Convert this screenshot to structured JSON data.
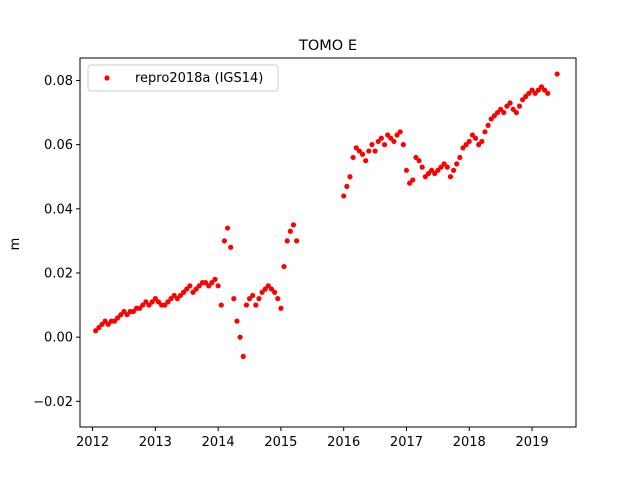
{
  "chart_data": {
    "type": "scatter",
    "title": "TOMO E",
    "xlabel": "",
    "ylabel": "m",
    "xlim": [
      2011.8,
      2019.7
    ],
    "ylim": [
      -0.028,
      0.087
    ],
    "x_ticks": [
      2012,
      2013,
      2014,
      2015,
      2016,
      2017,
      2018,
      2019
    ],
    "x_tick_labels": [
      "2012",
      "2013",
      "2014",
      "2015",
      "2016",
      "2017",
      "2018",
      "2019"
    ],
    "y_ticks": [
      -0.02,
      0.0,
      0.02,
      0.04,
      0.06,
      0.08
    ],
    "y_tick_labels": [
      "−0.02",
      "0.00",
      "0.02",
      "0.04",
      "0.06",
      "0.08"
    ],
    "grid": false,
    "legend_position": "top-left",
    "series": [
      {
        "name": "repro2018a (IGS14)",
        "color": "#ff0000",
        "marker": "circle",
        "x": [
          2012.05,
          2012.1,
          2012.15,
          2012.2,
          2012.25,
          2012.3,
          2012.35,
          2012.4,
          2012.45,
          2012.5,
          2012.55,
          2012.6,
          2012.65,
          2012.7,
          2012.75,
          2012.8,
          2012.85,
          2012.9,
          2012.95,
          2013.0,
          2013.05,
          2013.1,
          2013.15,
          2013.2,
          2013.25,
          2013.3,
          2013.35,
          2013.4,
          2013.45,
          2013.5,
          2013.55,
          2013.6,
          2013.65,
          2013.7,
          2013.75,
          2013.8,
          2013.85,
          2013.9,
          2013.95,
          2014.0,
          2014.05,
          2014.1,
          2014.15,
          2014.2,
          2014.25,
          2014.3,
          2014.35,
          2014.4,
          2014.45,
          2014.5,
          2014.55,
          2014.6,
          2014.65,
          2014.7,
          2014.75,
          2014.8,
          2014.85,
          2014.9,
          2014.95,
          2015.0,
          2015.05,
          2015.1,
          2015.15,
          2015.2,
          2015.25,
          2016.0,
          2016.05,
          2016.1,
          2016.15,
          2016.2,
          2016.25,
          2016.3,
          2016.35,
          2016.4,
          2016.45,
          2016.5,
          2016.55,
          2016.6,
          2016.65,
          2016.7,
          2016.75,
          2016.8,
          2016.85,
          2016.9,
          2016.95,
          2017.0,
          2017.05,
          2017.1,
          2017.15,
          2017.2,
          2017.25,
          2017.3,
          2017.35,
          2017.4,
          2017.45,
          2017.5,
          2017.55,
          2017.6,
          2017.65,
          2017.7,
          2017.75,
          2017.8,
          2017.85,
          2017.9,
          2017.95,
          2018.0,
          2018.05,
          2018.1,
          2018.15,
          2018.2,
          2018.25,
          2018.3,
          2018.35,
          2018.4,
          2018.45,
          2018.5,
          2018.55,
          2018.6,
          2018.65,
          2018.7,
          2018.75,
          2018.8,
          2018.85,
          2018.9,
          2018.95,
          2019.0,
          2019.05,
          2019.1,
          2019.15,
          2019.2,
          2019.25,
          2019.4
        ],
        "y": [
          0.002,
          0.003,
          0.004,
          0.005,
          0.004,
          0.005,
          0.005,
          0.006,
          0.007,
          0.008,
          0.007,
          0.008,
          0.008,
          0.009,
          0.009,
          0.01,
          0.011,
          0.01,
          0.011,
          0.012,
          0.011,
          0.01,
          0.01,
          0.011,
          0.012,
          0.013,
          0.012,
          0.013,
          0.014,
          0.015,
          0.016,
          0.014,
          0.015,
          0.016,
          0.017,
          0.017,
          0.016,
          0.017,
          0.018,
          0.016,
          0.01,
          0.03,
          0.034,
          0.028,
          0.012,
          0.005,
          0.0,
          -0.006,
          0.01,
          0.012,
          0.013,
          0.01,
          0.012,
          0.014,
          0.015,
          0.016,
          0.015,
          0.014,
          0.012,
          0.009,
          0.022,
          0.03,
          0.033,
          0.035,
          0.03,
          0.044,
          0.047,
          0.05,
          0.056,
          0.059,
          0.058,
          0.057,
          0.055,
          0.058,
          0.06,
          0.058,
          0.061,
          0.062,
          0.06,
          0.063,
          0.062,
          0.061,
          0.063,
          0.064,
          0.06,
          0.052,
          0.048,
          0.049,
          0.056,
          0.055,
          0.053,
          0.05,
          0.051,
          0.052,
          0.051,
          0.052,
          0.053,
          0.054,
          0.053,
          0.05,
          0.052,
          0.054,
          0.056,
          0.059,
          0.06,
          0.061,
          0.063,
          0.062,
          0.06,
          0.061,
          0.064,
          0.066,
          0.068,
          0.069,
          0.07,
          0.071,
          0.07,
          0.072,
          0.073,
          0.071,
          0.07,
          0.072,
          0.074,
          0.075,
          0.076,
          0.077,
          0.076,
          0.077,
          0.078,
          0.077,
          0.076,
          0.082
        ]
      }
    ]
  }
}
